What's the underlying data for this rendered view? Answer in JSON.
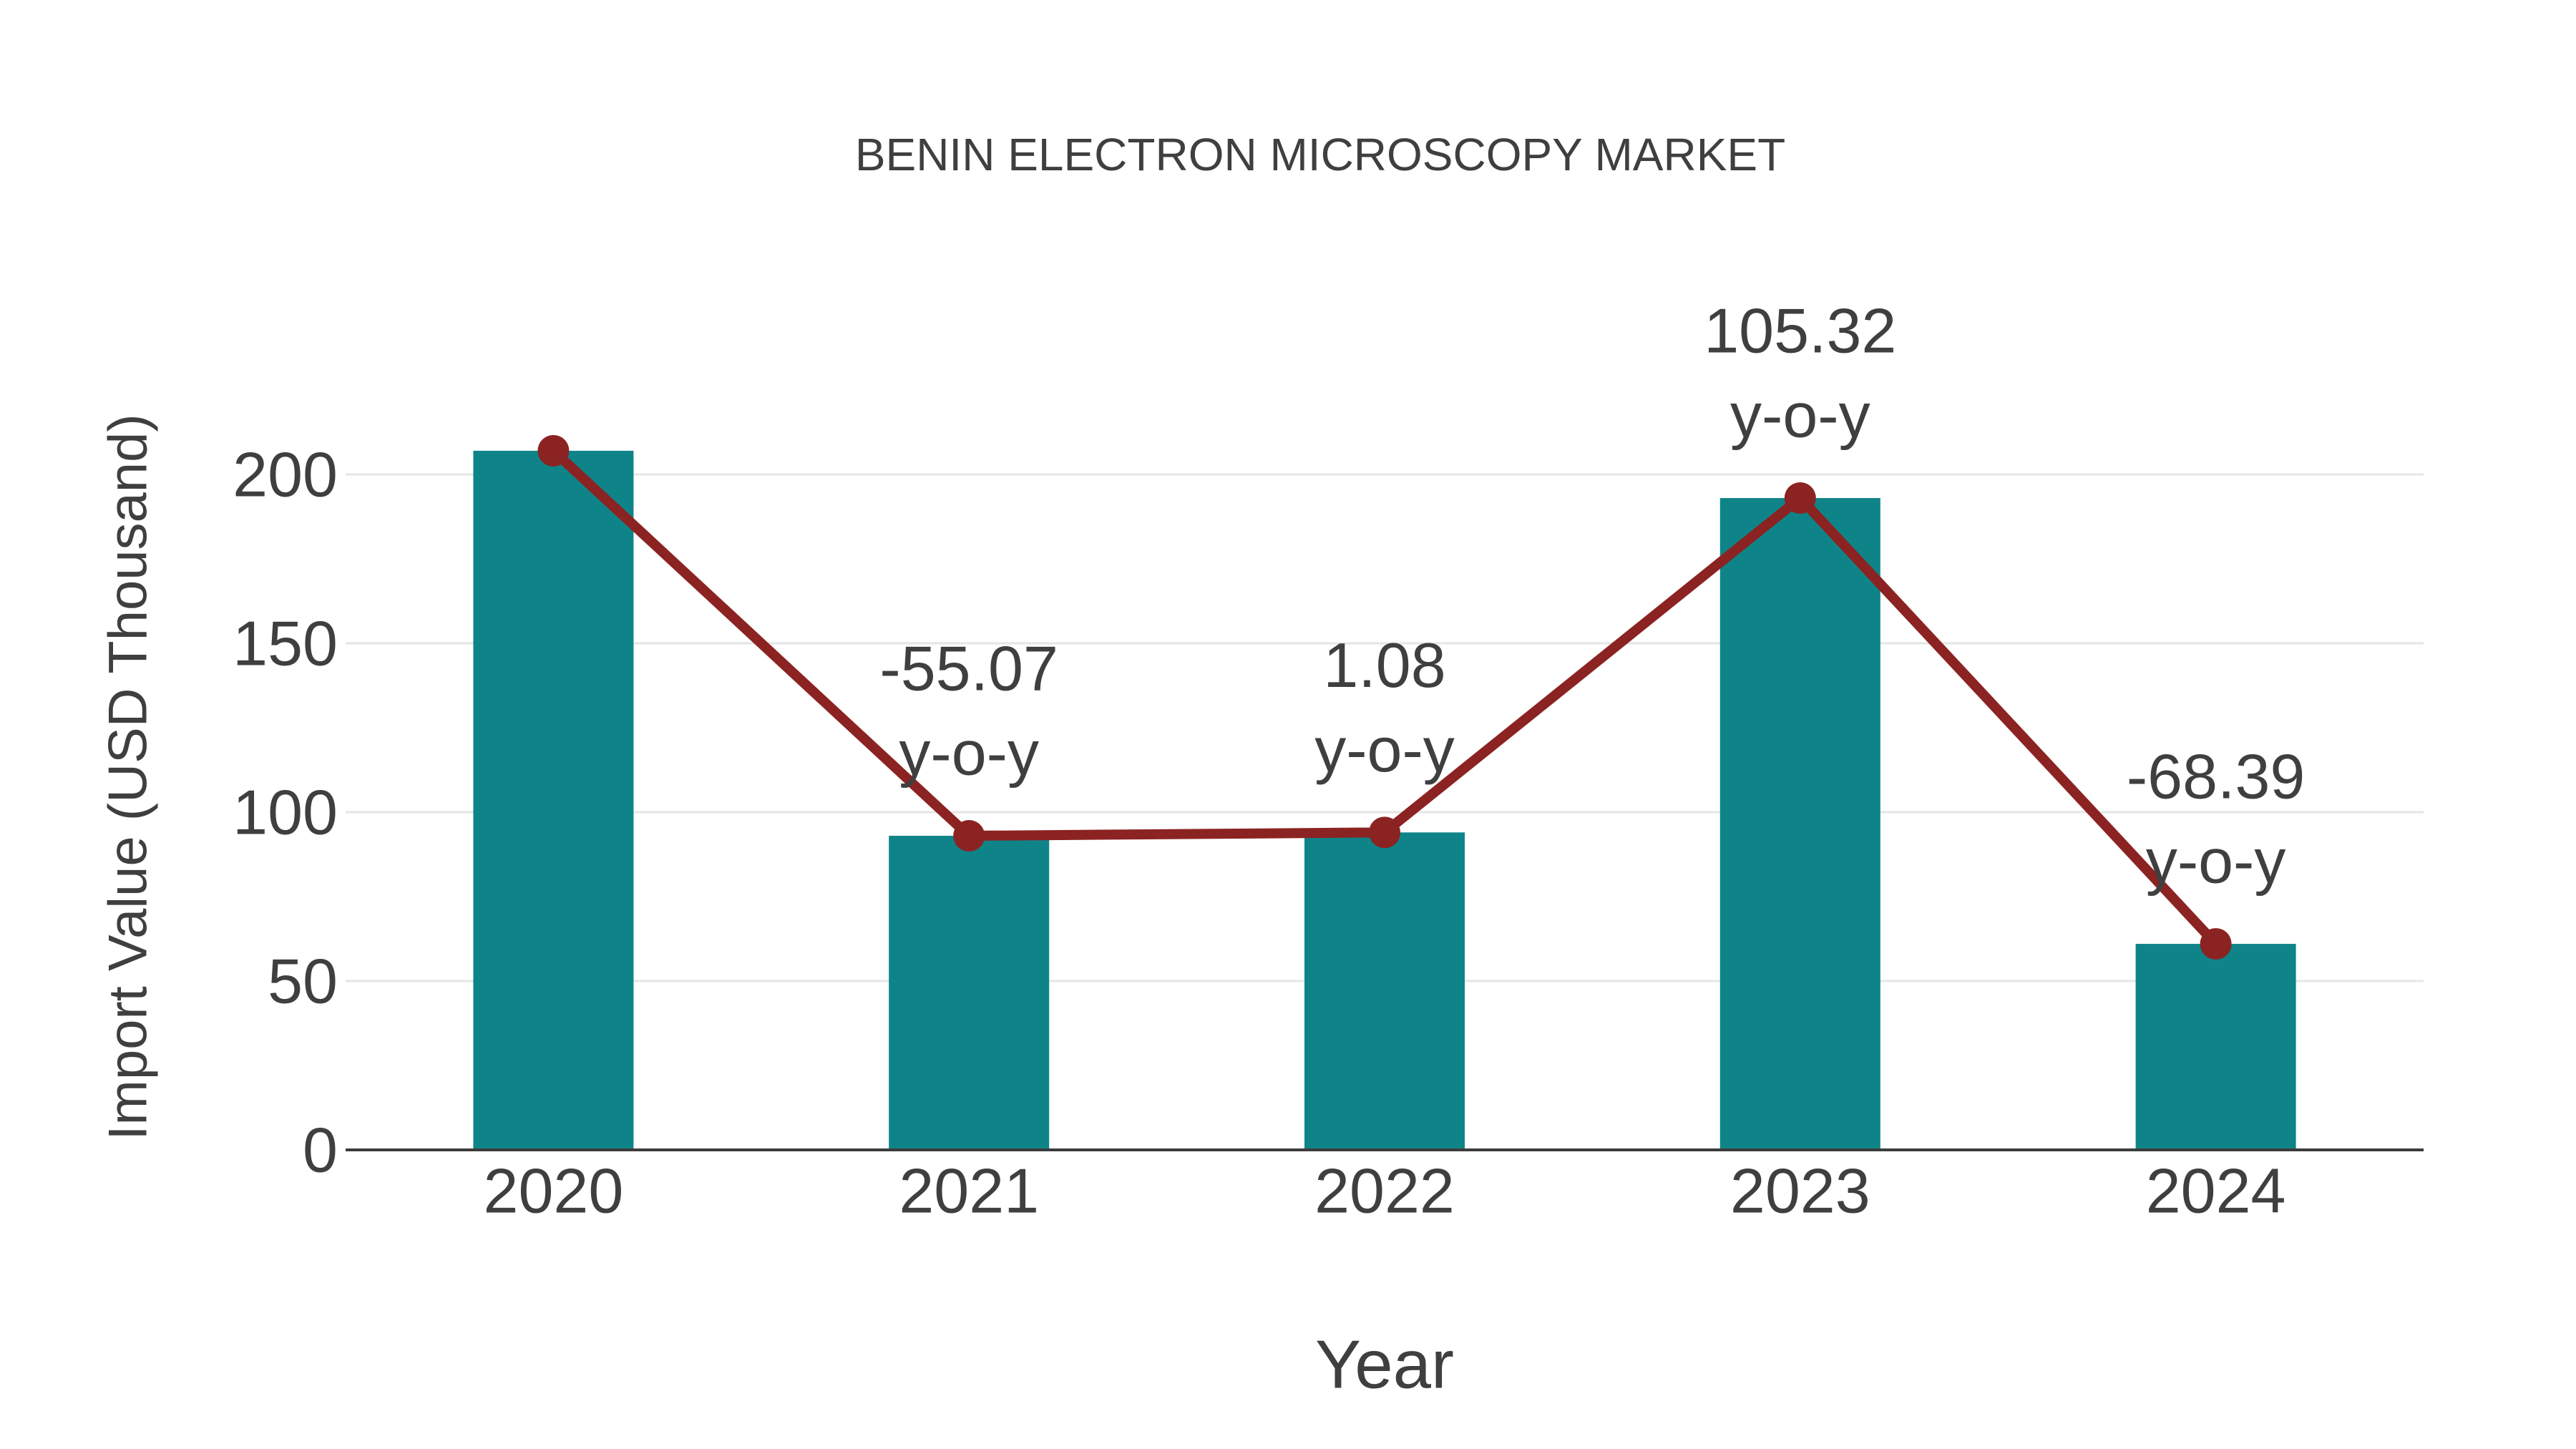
{
  "chart_data": {
    "type": "bar",
    "combo": "bar+line",
    "title": "BENIN ELECTRON MICROSCOPY MARKET",
    "xlabel": "Year",
    "ylabel": "Import Value (USD Thousand)",
    "categories": [
      "2020",
      "2021",
      "2022",
      "2023",
      "2024"
    ],
    "series": [
      {
        "name": "import-value-bars",
        "type": "bar",
        "values": [
          207,
          93,
          94,
          193,
          61
        ]
      },
      {
        "name": "import-value-trend-line",
        "type": "line",
        "values": [
          207,
          93,
          94,
          193,
          61
        ]
      }
    ],
    "annotations": [
      {
        "category": "2021",
        "line1": "-55.07",
        "line2": "y-o-y"
      },
      {
        "category": "2022",
        "line1": "1.08",
        "line2": "y-o-y"
      },
      {
        "category": "2023",
        "line1": "105.32",
        "line2": "y-o-y"
      },
      {
        "category": "2024",
        "line1": "-68.39",
        "line2": "y-o-y"
      }
    ],
    "yticks": [
      0,
      50,
      100,
      150,
      200
    ],
    "ylim": [
      0,
      248
    ],
    "grid": "horizontal-only",
    "legend": "none",
    "colors": {
      "bar": "#0e8488",
      "line": "#8b2322",
      "marker": "#8b2322",
      "text": "#3f3f3f",
      "grid": "#e6e6e6",
      "axis": "#3c3c3c",
      "background": "#ffffff"
    }
  }
}
